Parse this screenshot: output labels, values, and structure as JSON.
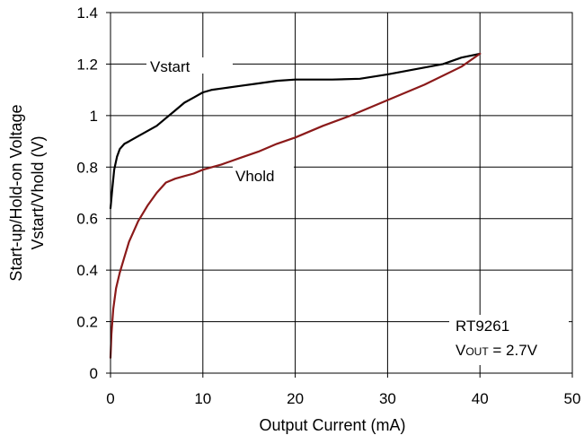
{
  "chart_data": {
    "type": "line",
    "xlabel": "Output Current (mA)",
    "ylabel_line1": "Start-up/Hold-on Voltage",
    "ylabel_line2": "Vstart/Vhold (V)",
    "xlim": [
      0,
      50
    ],
    "ylim": [
      0,
      1.4
    ],
    "x_ticks": [
      0,
      10,
      20,
      30,
      40,
      50
    ],
    "y_ticks": [
      0,
      0.2,
      0.4,
      0.6,
      0.8,
      1,
      1.2,
      1.4
    ],
    "x_tick_labels": [
      "0",
      "10",
      "20",
      "30",
      "40",
      "50"
    ],
    "y_tick_labels": [
      "0",
      "0.2",
      "0.4",
      "0.6",
      "0.8",
      "1",
      "1.2",
      "1.4"
    ],
    "grid": true,
    "series": [
      {
        "name": "Vstart",
        "color": "#000000",
        "x": [
          0,
          0.2,
          0.4,
          0.7,
          1.0,
          1.5,
          2,
          3,
          4,
          5,
          6,
          7,
          8,
          9,
          10,
          11,
          12,
          14,
          16,
          18,
          20,
          22,
          24,
          27,
          30,
          33,
          36,
          38,
          40
        ],
        "y": [
          0.64,
          0.72,
          0.79,
          0.84,
          0.87,
          0.89,
          0.9,
          0.92,
          0.94,
          0.96,
          0.99,
          1.02,
          1.05,
          1.07,
          1.09,
          1.1,
          1.105,
          1.115,
          1.125,
          1.135,
          1.14,
          1.14,
          1.14,
          1.143,
          1.16,
          1.18,
          1.2,
          1.225,
          1.24
        ]
      },
      {
        "name": "Vhold",
        "color": "#8b1a1a",
        "x": [
          0,
          0.1,
          0.3,
          0.6,
          1.0,
          1.5,
          2,
          3,
          4,
          5,
          6,
          7,
          8,
          9,
          10,
          12,
          14,
          16,
          18,
          20,
          23,
          26,
          30,
          34,
          38,
          40
        ],
        "y": [
          0.06,
          0.15,
          0.25,
          0.33,
          0.39,
          0.45,
          0.51,
          0.59,
          0.65,
          0.7,
          0.74,
          0.755,
          0.765,
          0.775,
          0.79,
          0.81,
          0.835,
          0.86,
          0.89,
          0.915,
          0.96,
          1.0,
          1.06,
          1.12,
          1.19,
          1.24
        ]
      }
    ],
    "annotations": {
      "vstart_label": "Vstart",
      "vhold_label": "Vhold",
      "device": "RT9261",
      "vout_main": "V",
      "vout_sub": "OUT",
      "vout_value": " = 2.7V"
    }
  }
}
